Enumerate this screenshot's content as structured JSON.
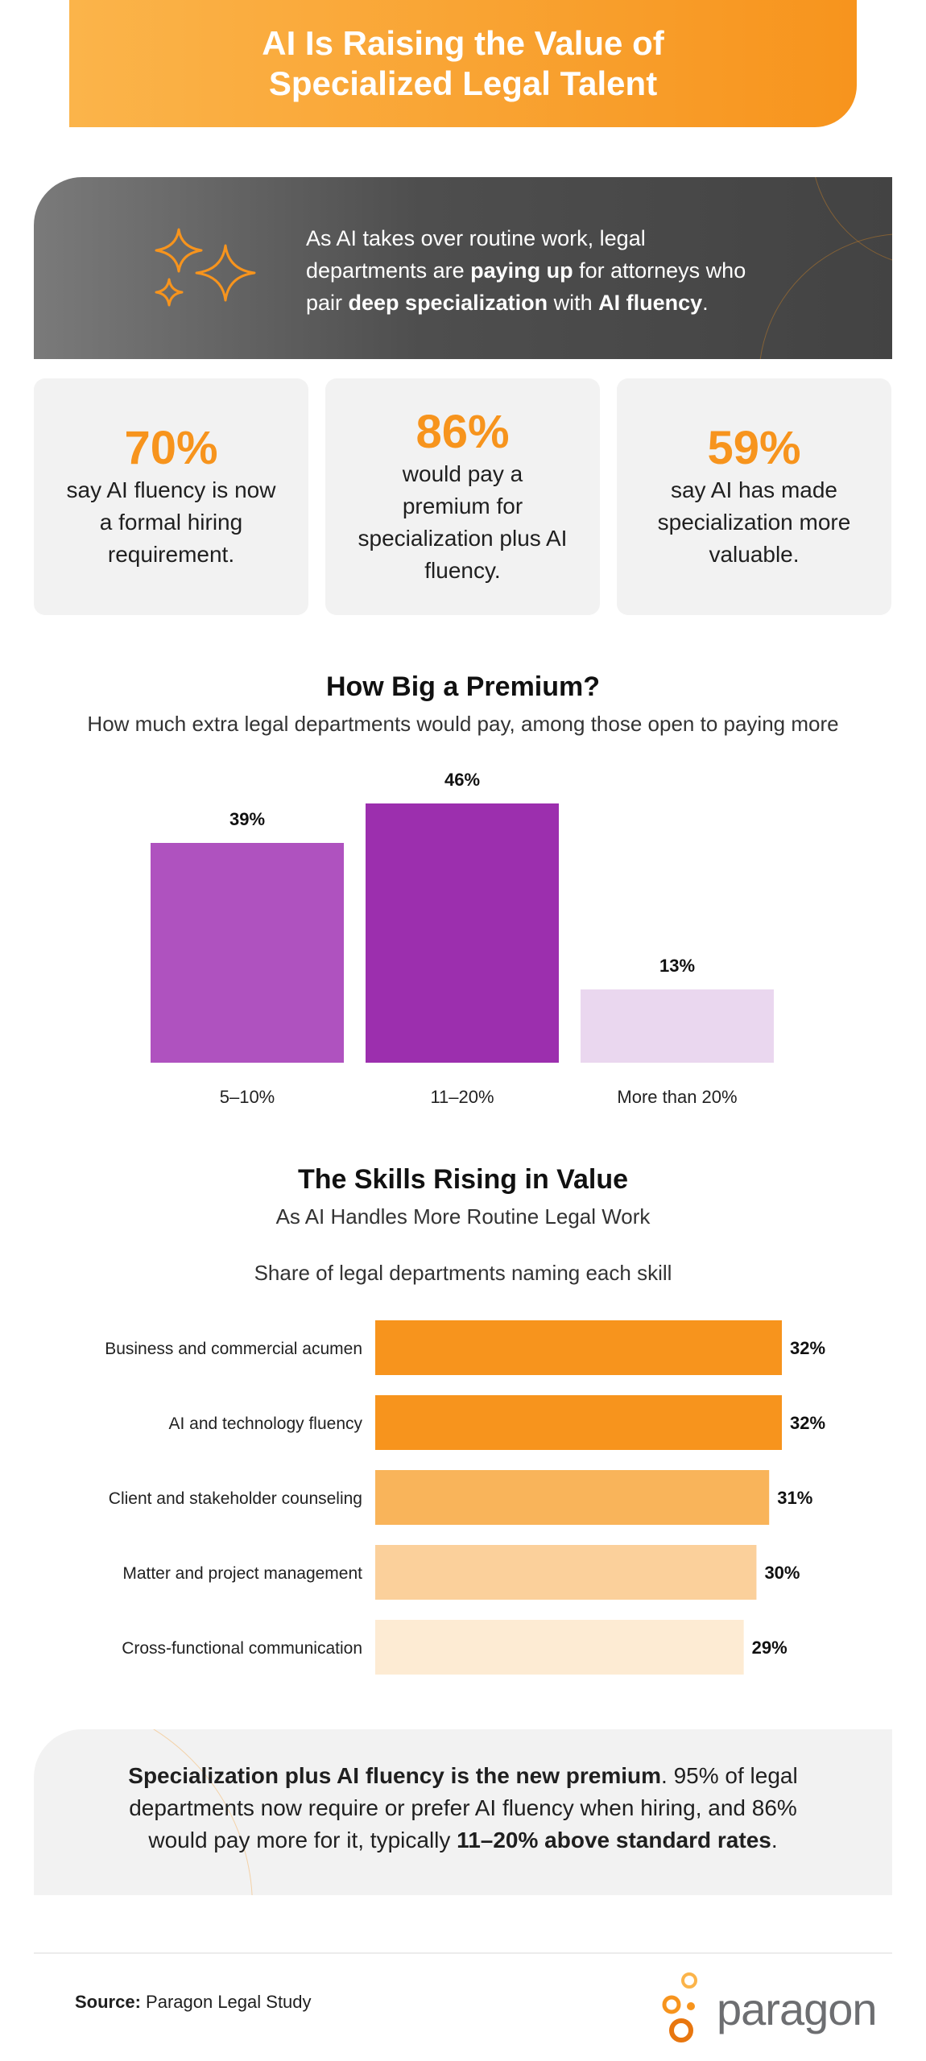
{
  "header": {
    "title_line1": "AI Is Raising the Value of",
    "title_line2": "Specialized Legal Talent"
  },
  "intro": {
    "line1": "As AI takes over routine work, legal",
    "line2_a": "departments are ",
    "line2_b": "paying up",
    "line2_c": " for attorneys who",
    "line3_a": "pair ",
    "line3_b": "deep specialization",
    "line3_c": " with ",
    "line3_d": "AI fluency",
    "line3_e": "."
  },
  "stats": [
    {
      "value": "70%",
      "text": "say AI fluency is now a formal hiring requirement."
    },
    {
      "value": "86%",
      "text": "would pay a premium for specialization plus AI fluency."
    },
    {
      "value": "59%",
      "text": "say AI has made specialization more valuable."
    }
  ],
  "premium_section": {
    "title": "How Big a Premium?",
    "subtitle": "How much extra legal departments would pay, among those open to paying more"
  },
  "skills_section": {
    "title": "The Skills Rising in Value",
    "subtitle": "As AI Handles More Routine Legal Work",
    "caption": "Share of legal departments naming each skill"
  },
  "chart_data": [
    {
      "type": "bar",
      "title": "How Big a Premium?",
      "categories": [
        "5–10%",
        "11–20%",
        "More than 20%"
      ],
      "values": [
        39,
        46,
        13
      ],
      "value_labels": [
        "39%",
        "46%",
        "13%"
      ],
      "colors": [
        "#af52bf",
        "#9c2fae",
        "#ead7ef"
      ],
      "ylim": [
        0,
        50
      ],
      "grid": false
    },
    {
      "type": "bar",
      "orientation": "horizontal",
      "title": "The Skills Rising in Value",
      "categories": [
        "Business and commercial acumen",
        "AI and technology fluency",
        "Client and stakeholder counseling",
        "Matter and project management",
        "Cross-functional communication"
      ],
      "values": [
        32,
        32,
        31,
        30,
        29
      ],
      "value_labels": [
        "32%",
        "32%",
        "31%",
        "30%",
        "29%"
      ],
      "colors": [
        "#f7941d",
        "#f7941d",
        "#f9b45a",
        "#fbd09b",
        "#fdebd3"
      ],
      "xlim": [
        0,
        32
      ],
      "grid": false
    }
  ],
  "takeaway": {
    "bold1": "Specialization plus AI fluency is the new premium",
    "text1": ". 95% of legal departments now require or prefer AI fluency when hiring, and 86% would pay more for it, typically ",
    "bold2": "11–20% above standard rates",
    "text2": "."
  },
  "footer": {
    "source_label": "Source:",
    "source_text": " Paragon Legal Study",
    "logo_text": "paragon"
  },
  "colors": {
    "accent": "#f7941d",
    "dark_panel": "#4a4a4a",
    "card_bg": "#f2f2f2"
  },
  "icons": {
    "sparkles": "sparkles-icon",
    "logo_mark": "paragon-circles-icon"
  }
}
